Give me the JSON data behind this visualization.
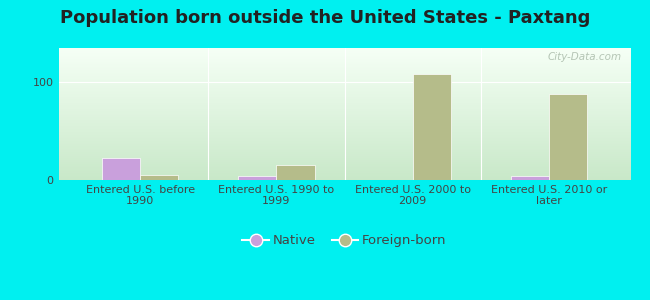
{
  "title": "Population born outside the United States - Paxtang",
  "categories": [
    "Entered U.S. before\n1990",
    "Entered U.S. 1990 to\n1999",
    "Entered U.S. 2000 to\n2009",
    "Entered U.S. 2010 or\nlater"
  ],
  "native_values": [
    22,
    4,
    0,
    4
  ],
  "foreign_values": [
    5,
    15,
    108,
    88
  ],
  "native_color": "#c9a0dc",
  "foreign_color": "#b5bc8a",
  "background_color": "#00f0f0",
  "plot_bg_top_color": "#f5fff5",
  "plot_bg_bottom_color": "#c8e8c8",
  "ylim": [
    0,
    135
  ],
  "yticks": [
    0,
    100
  ],
  "bar_width": 0.28,
  "watermark": "City-Data.com",
  "title_fontsize": 13,
  "tick_fontsize": 8,
  "legend_fontsize": 9.5,
  "label_color": "#444444"
}
